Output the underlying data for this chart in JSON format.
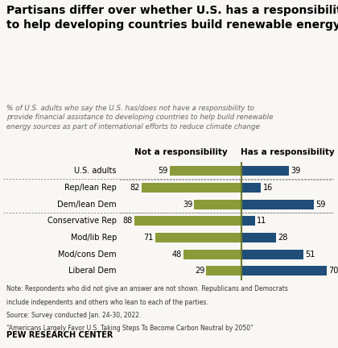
{
  "title": "Partisans differ over whether U.S. has a responsibility\nto help developing countries build renewable energy",
  "subtitle": "% of U.S. adults who say the U.S. has/does not have a responsibility to\nprovide financial assistance to developing countries to help build renewable\nenergy sources as part of international efforts to reduce climate change",
  "categories": [
    "U.S. adults",
    "Rep/lean Rep",
    "Dem/lean Dem",
    "Conservative Rep",
    "Mod/lib Rep",
    "Mod/cons Dem",
    "Liberal Dem"
  ],
  "not_responsibility": [
    59,
    82,
    39,
    88,
    71,
    48,
    29
  ],
  "has_responsibility": [
    39,
    16,
    59,
    11,
    28,
    51,
    70
  ],
  "color_not": "#8B9B3A",
  "color_has": "#1F4E79",
  "divider_color": "#6B7A2A",
  "header_not": "Not a responsibility",
  "header_has": "Has a responsibility",
  "note_line1": "Note: Respondents who did not give an answer are not shown. Republicans and Democrats",
  "note_line2": "include independents and others who lean to each of the parties.",
  "note_line3": "Source: Survey conducted Jan. 24-30, 2022.",
  "note_line4": "“Americans Largely Favor U.S. Taking Steps To Become Carbon Neutral by 2050”",
  "footer": "PEW RESEARCH CENTER",
  "bg_color": "#f9f7f4"
}
